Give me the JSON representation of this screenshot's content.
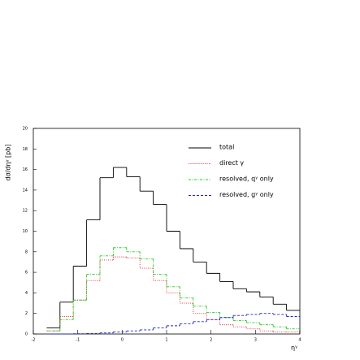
{
  "chart_data": {
    "type": "histogram",
    "ylabel": "dσ/dηᵞ [pb]",
    "xlabel": "ηᵞ",
    "bins": [
      -1.7,
      -1.4,
      -1.1,
      -0.8,
      -0.5,
      -0.2,
      0.1,
      0.4,
      0.7,
      1.0,
      1.3,
      1.6,
      1.9,
      2.2,
      2.5,
      2.8,
      3.1,
      3.4,
      3.7,
      4.0
    ],
    "series": [
      {
        "name": "total",
        "color": "#000000",
        "dash": "none",
        "values": [
          0.6,
          3.1,
          6.6,
          11.1,
          15.2,
          16.2,
          15.3,
          13.9,
          12.6,
          10.0,
          8.3,
          7.0,
          5.9,
          5.1,
          4.4,
          4.1,
          3.6,
          2.9,
          2.3
        ]
      },
      {
        "name": "direct γ",
        "color": "#e8222a",
        "dash": "1,1.5",
        "values": [
          0.3,
          1.7,
          3.3,
          5.2,
          7.2,
          7.5,
          7.4,
          6.4,
          5.2,
          4.0,
          3.0,
          2.0,
          1.4,
          0.9,
          0.7,
          0.5,
          0.3,
          0.2,
          0.2
        ]
      },
      {
        "name": "resolved, qᵞ only",
        "color": "#22cc22",
        "dash": "3,1.5,1,1.5",
        "values": [
          0.3,
          1.4,
          3.3,
          5.8,
          7.6,
          8.4,
          8.0,
          7.3,
          5.8,
          4.6,
          3.5,
          2.7,
          2.1,
          1.6,
          1.3,
          1.1,
          0.9,
          0.7,
          0.5
        ]
      },
      {
        "name": "resolved, gᵞ only",
        "color": "#2222cc",
        "dash": "3,2",
        "values": [
          0,
          0,
          0.02,
          0.05,
          0.1,
          0.2,
          0.3,
          0.4,
          0.6,
          0.8,
          1.0,
          1.2,
          1.4,
          1.6,
          1.8,
          1.9,
          2.0,
          1.9,
          1.7
        ]
      }
    ],
    "xlim": [
      -2,
      4
    ],
    "ylim": [
      0,
      20
    ],
    "xticks": [
      -2,
      -1,
      0,
      1,
      2,
      3,
      4
    ],
    "yticks": [
      0,
      2,
      4,
      6,
      8,
      10,
      12,
      14,
      16,
      18,
      20
    ]
  }
}
